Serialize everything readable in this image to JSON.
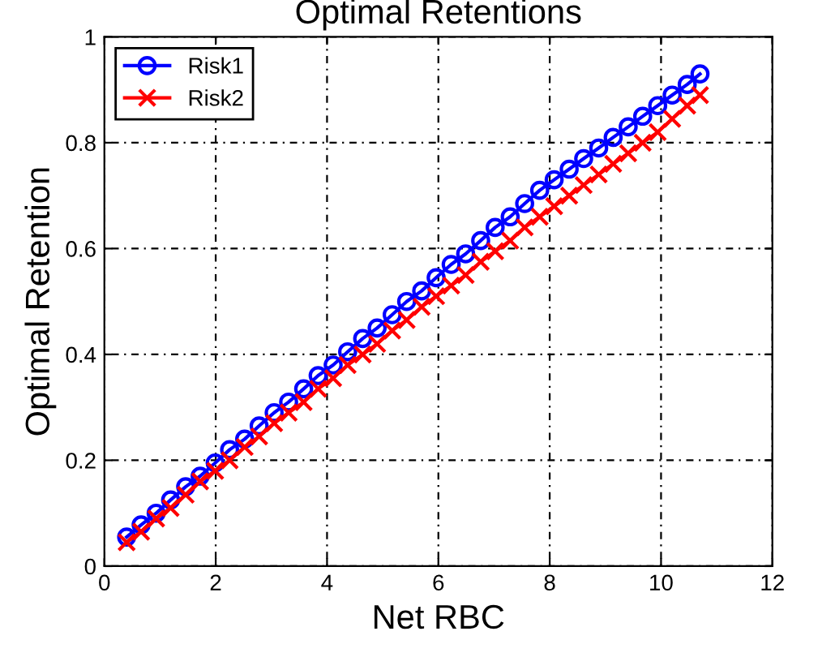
{
  "chart_data": {
    "type": "line",
    "title": "Optimal Retentions",
    "xlabel": "Net RBC",
    "ylabel": "Optimal Retention",
    "x": [
      0.4,
      0.66,
      0.93,
      1.19,
      1.46,
      1.72,
      1.99,
      2.25,
      2.52,
      2.78,
      3.05,
      3.31,
      3.58,
      3.84,
      4.11,
      4.37,
      4.64,
      4.9,
      5.17,
      5.43,
      5.7,
      5.96,
      6.23,
      6.49,
      6.76,
      7.02,
      7.29,
      7.55,
      7.82,
      8.08,
      8.35,
      8.61,
      8.88,
      9.14,
      9.41,
      9.67,
      9.94,
      10.2,
      10.47,
      10.7
    ],
    "series": [
      {
        "name": "Risk1",
        "color": "#0000ff",
        "marker": "circle",
        "values": [
          0.055,
          0.078,
          0.1,
          0.125,
          0.15,
          0.17,
          0.195,
          0.22,
          0.24,
          0.265,
          0.29,
          0.31,
          0.335,
          0.36,
          0.38,
          0.405,
          0.43,
          0.45,
          0.475,
          0.5,
          0.52,
          0.545,
          0.57,
          0.59,
          0.615,
          0.64,
          0.66,
          0.685,
          0.71,
          0.73,
          0.75,
          0.77,
          0.79,
          0.81,
          0.83,
          0.85,
          0.87,
          0.89,
          0.91,
          0.93
        ]
      },
      {
        "name": "Risk2",
        "color": "#ff0000",
        "marker": "cross",
        "values": [
          0.045,
          0.065,
          0.09,
          0.11,
          0.135,
          0.16,
          0.18,
          0.2,
          0.225,
          0.245,
          0.27,
          0.29,
          0.31,
          0.335,
          0.355,
          0.38,
          0.4,
          0.42,
          0.445,
          0.465,
          0.49,
          0.51,
          0.53,
          0.55,
          0.575,
          0.595,
          0.615,
          0.64,
          0.66,
          0.68,
          0.7,
          0.72,
          0.74,
          0.76,
          0.78,
          0.8,
          0.82,
          0.845,
          0.87,
          0.89
        ]
      }
    ],
    "xlim": [
      0,
      12
    ],
    "xticks": [
      0,
      2,
      4,
      6,
      8,
      10,
      12
    ],
    "ylim": [
      0,
      1
    ],
    "yticks": [
      0,
      0.2,
      0.4,
      0.6,
      0.8,
      1
    ],
    "grid": true,
    "legend": "top left",
    "line_style": "solid"
  }
}
